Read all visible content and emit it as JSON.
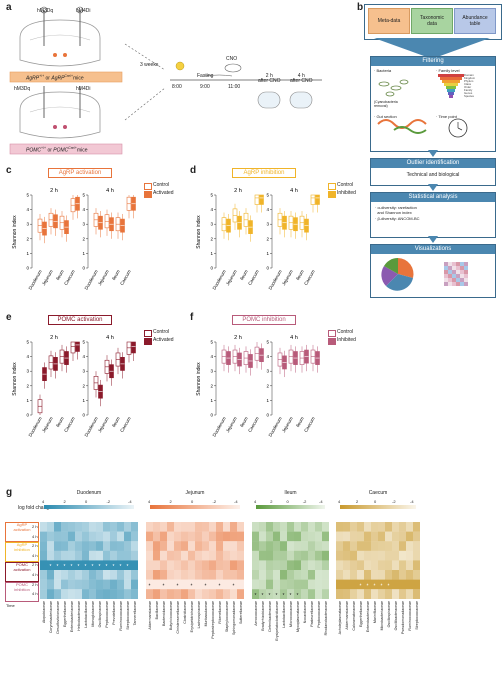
{
  "panel_labels": {
    "a": "a",
    "b": "b",
    "c": "c",
    "d": "d",
    "e": "e",
    "f": "f",
    "g": "g"
  },
  "panel_a": {
    "hm3dq_top": "hM3Dq",
    "hm4di_top": "hM4Di",
    "agrp_mice": "AgRP",
    "agrp_mice_sup1": "+/+",
    "agrp_mice_or": " or ",
    "agrp_mice_2": "AgRP",
    "agrp_mice_sup2": "Cre/+",
    "agrp_mice_end": "mice",
    "hm3dq_bottom": "hM3Dq",
    "hm4di_bottom": "hM4Di",
    "pomc_mice": "POMC",
    "pomc_mice_sup1": "+/+",
    "pomc_mice_or": " or ",
    "pomc_mice_2": "POMC",
    "pomc_mice_sup2": "Cre/+",
    "pomc_mice_end": "mice",
    "weeks": "3 weeks",
    "fasting": "Fasting",
    "cno": "CNO",
    "after2h": "2 h\nafter CNO",
    "after4h": "4 h\nafter CNO",
    "time_800": "8:00",
    "time_900": "9:00",
    "time_1100": "11:00"
  },
  "panel_b": {
    "meta": "Meta-data",
    "taxonomic": "Taxonomic\ndata",
    "abundance": "Abundance\ntable",
    "filtering": "Filtering",
    "bacteria": "· Bacteria",
    "cyano": "(Cyanobacteria\nremoval)",
    "family_level": "· Family level",
    "gut_section": "· Gut section",
    "time_point": "· Time point",
    "outlier": "Outlier identification",
    "outlier_sub": "Technical and biological",
    "stat": "Statistical analysis",
    "alpha": "· α-diversity: rarefaction\n  and Shannon index",
    "beta": "· β-diversity: ANCOM-BC",
    "viz": "Visualizations",
    "tax_levels": [
      "Domain",
      "Kingdom",
      "Phylum",
      "Class",
      "Order",
      "Family",
      "Genus",
      "Species"
    ]
  },
  "boxplot_panels": [
    {
      "id": "c",
      "title": "AgRP activation",
      "color": "#e8743b",
      "legend": [
        "Control",
        "Activated"
      ]
    },
    {
      "id": "d",
      "title": "AgRP inhibition",
      "color": "#f0b429",
      "legend": [
        "Control",
        "Inhibited"
      ]
    },
    {
      "id": "e",
      "title": "POMC activation",
      "color": "#8b1a2b",
      "legend": [
        "Control",
        "Activated"
      ]
    },
    {
      "id": "f",
      "title": "POMC inhibition",
      "color": "#b85b7a",
      "legend": [
        "Control",
        "Inhibited"
      ]
    }
  ],
  "boxplot_common": {
    "ylabel": "Shannon index",
    "time_labels": [
      "2 h",
      "4 h"
    ],
    "sections": [
      "Duodenum",
      "Jejunum",
      "Ileum",
      "Caecum"
    ],
    "yticks": [
      "0",
      "1",
      "2",
      "3",
      "4",
      "5"
    ]
  },
  "chart_data": [
    {
      "type": "box",
      "title": "AgRP activation",
      "ylabel": "Shannon index",
      "ylim": [
        0,
        5
      ],
      "series": [
        {
          "name": "Control",
          "time": "2 h",
          "medians": [
            2.9,
            3.3,
            3.1,
            4.3
          ]
        },
        {
          "name": "Activated",
          "time": "2 h",
          "medians": [
            2.7,
            3.2,
            2.8,
            4.4
          ]
        },
        {
          "name": "Control",
          "time": "4 h",
          "medians": [
            3.3,
            3.2,
            3.0,
            4.4
          ]
        },
        {
          "name": "Activated",
          "time": "4 h",
          "medians": [
            3.1,
            3.0,
            2.9,
            4.4
          ]
        }
      ],
      "categories": [
        "Duodenum",
        "Jejunum",
        "Ileum",
        "Caecum"
      ]
    },
    {
      "type": "box",
      "title": "AgRP inhibition",
      "ylabel": "Shannon index",
      "ylim": [
        0,
        5
      ],
      "series": [
        {
          "name": "Control",
          "time": "2 h",
          "medians": [
            3.0,
            3.6,
            3.3,
            4.8
          ]
        },
        {
          "name": "Inhibited",
          "time": "2 h",
          "medians": [
            2.9,
            3.1,
            2.8,
            4.8
          ]
        },
        {
          "name": "Control",
          "time": "4 h",
          "medians": [
            3.3,
            3.1,
            3.1,
            4.8
          ]
        },
        {
          "name": "Inhibited",
          "time": "4 h",
          "medians": [
            3.1,
            3.0,
            2.9,
            4.8
          ]
        }
      ],
      "categories": [
        "Duodenum",
        "Jejunum",
        "Ileum",
        "Caecum"
      ]
    },
    {
      "type": "box",
      "title": "POMC activation",
      "ylabel": "Shannon index",
      "ylim": [
        0,
        5
      ],
      "series": [
        {
          "name": "Control",
          "time": "2 h",
          "medians": [
            0.6,
            3.6,
            4.0,
            4.7
          ]
        },
        {
          "name": "Activated",
          "time": "2 h",
          "medians": [
            2.8,
            3.5,
            3.9,
            4.8
          ]
        },
        {
          "name": "Control",
          "time": "4 h",
          "medians": [
            2.2,
            3.3,
            3.8,
            4.6
          ]
        },
        {
          "name": "Activated",
          "time": "4 h",
          "medians": [
            1.6,
            3.0,
            3.5,
            4.7
          ]
        }
      ],
      "categories": [
        "Duodenum",
        "Jejunum",
        "Ileum",
        "Caecum"
      ]
    },
    {
      "type": "box",
      "title": "POMC inhibition",
      "ylabel": "Shannon index",
      "ylim": [
        0,
        5
      ],
      "series": [
        {
          "name": "Control",
          "time": "2 h",
          "medians": [
            4.0,
            4.0,
            3.9,
            4.2
          ]
        },
        {
          "name": "Inhibited",
          "time": "2 h",
          "medians": [
            3.9,
            3.8,
            3.7,
            4.1
          ]
        },
        {
          "name": "Control",
          "time": "4 h",
          "medians": [
            3.8,
            4.0,
            3.9,
            4.0
          ]
        },
        {
          "name": "Inhibited",
          "time": "4 h",
          "medians": [
            3.6,
            3.9,
            4.0,
            3.9
          ]
        }
      ],
      "categories": [
        "Duodenum",
        "Jejunum",
        "Ileum",
        "Caecum"
      ]
    }
  ],
  "panel_g": {
    "lfc_label": "log fold change",
    "time_label": "Time",
    "row_groups": [
      "AgRP\nactivation",
      "AgRP\ninhibition",
      "POMC\nactivation",
      "POMC\ninhibition"
    ],
    "row_times": [
      "2 h",
      "4 h",
      "2 h",
      "4 h",
      "2 h",
      "4 h",
      "2 h",
      "4 h"
    ],
    "sections": [
      {
        "name": "Duodenum",
        "scale": [
          "4",
          "2",
          "0",
          "-2",
          "-4"
        ],
        "color": "#2b8bb0",
        "families": [
          "Atopobiaceae",
          "Corynebacteriaceae",
          "Desulfovibrionaceae",
          "Eggerthellaceae",
          "Enterobacteriaceae",
          "Helicobacteraceae",
          "Lactobacillaceae",
          "Monoglobaceae",
          "Oscillospiraceae",
          "Peptococcaceae",
          "Prevotellaceae",
          "Ruminococcaceae",
          "Streptococcaceae",
          "Tannerellaceae"
        ]
      },
      {
        "name": "Jejunum",
        "scale": [
          "4",
          "2",
          "0",
          "-2",
          "-4"
        ],
        "color": "#e8743b",
        "families": [
          "Akkermansiaceae",
          "Bacillaceae",
          "Bacteroidaceae",
          "Butyricicoccaceae",
          "Christensenellaceae",
          "Clostridiaceae",
          "Erysipelotrichaceae",
          "Lachnospiraceae",
          "Muribaculaceae",
          "Peptostreptococcaceae",
          "Rikenellaceae",
          "Staphylococcaceae",
          "Sphingomonadaceae",
          "Sutterellaceae"
        ]
      },
      {
        "name": "Ileum",
        "scale": [
          "4",
          "2",
          "0",
          "-2",
          "-4"
        ],
        "color": "#5a9a3c",
        "families": [
          "Aerococcaceae",
          "Bradyrhizobiaceae",
          "Deferribacteraceae",
          "Erysipelatoclostridiaceae",
          "Lactobacillaceae",
          "Micrococcaceae",
          "Mycoplasmataceae",
          "Nocardiaceae",
          "Pasteurellaceae",
          "Peptococcaceae",
          "Rhodanobacteraceae"
        ]
      },
      {
        "name": "Caecum",
        "scale": [
          "4",
          "2",
          "0",
          "-2",
          "-4"
        ],
        "color": "#c99a2e",
        "families": [
          "Acholeplasmataceae",
          "Akkermansiaceae",
          "Caloramatoraceae",
          "Eggerthellaceae",
          "Enterobacteriaceae",
          "Marinifilaceae",
          "Microbacteriaceae",
          "Oscillospiraceae",
          "Oscillibacteraceae",
          "Pseudomonadaceae",
          "Ruminococcaceae",
          "Streptococcaceae"
        ]
      }
    ]
  }
}
